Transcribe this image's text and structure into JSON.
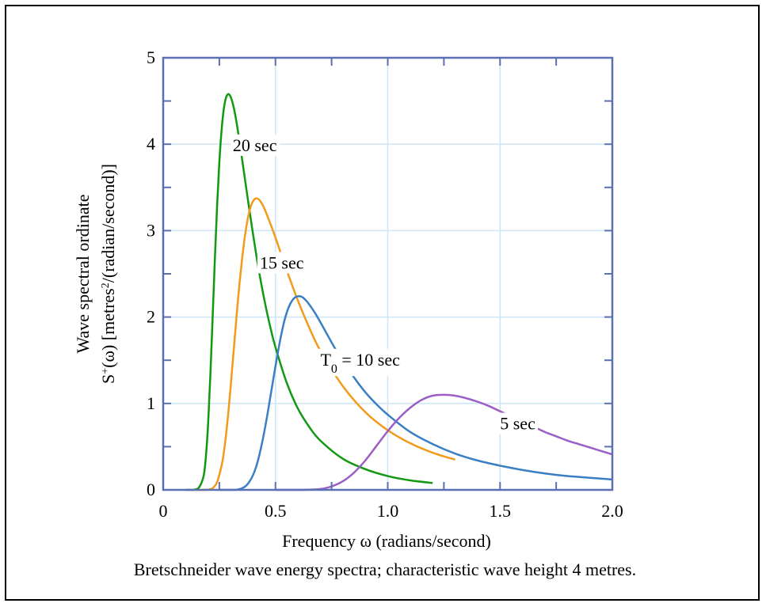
{
  "chart_data": {
    "type": "line",
    "title": "",
    "xlabel": "Frequency ω (radians/second)",
    "ylabel_line1": "Wave spectral ordinate",
    "ylabel_line2_prefix": "S",
    "ylabel_line2_sup": "+",
    "ylabel_line2_mid": "(ω) [metres",
    "ylabel_line2_sup2": "2",
    "ylabel_line2_suffix": "/(radian/second)]",
    "caption": "Bretschneider wave energy spectra; characteristic wave height 4 metres.",
    "xlim": [
      0,
      2.0
    ],
    "ylim": [
      0,
      5
    ],
    "x_ticks": [
      "0",
      "0.5",
      "1.0",
      "1.5",
      "2.0"
    ],
    "x_tick_values": [
      0,
      0.5,
      1.0,
      1.5,
      2.0
    ],
    "y_ticks": [
      "0",
      "1",
      "2",
      "3",
      "4",
      "5"
    ],
    "y_tick_values": [
      0,
      1,
      2,
      3,
      4,
      5
    ],
    "grid": true,
    "significant_wave_height": 4,
    "series": [
      {
        "label": "20 sec",
        "period": 20,
        "color": "#119911",
        "x": [
          0.1,
          0.12,
          0.14,
          0.16,
          0.18,
          0.19,
          0.2,
          0.21,
          0.22,
          0.23,
          0.24,
          0.25,
          0.26,
          0.27,
          0.28,
          0.29,
          0.3,
          0.31,
          0.32,
          0.33,
          0.34,
          0.35,
          0.36,
          0.37,
          0.38,
          0.4,
          0.42,
          0.44,
          0.46,
          0.48,
          0.5,
          0.55,
          0.6,
          0.65,
          0.7,
          0.8,
          0.9,
          1.0,
          1.1,
          1.2
        ],
        "values": [
          0.0,
          0.0,
          0.003,
          0.03,
          0.16,
          0.38,
          0.76,
          1.32,
          1.98,
          2.66,
          3.28,
          3.79,
          4.16,
          4.41,
          4.54,
          4.58,
          4.55,
          4.47,
          4.35,
          4.2,
          4.03,
          3.85,
          3.67,
          3.49,
          3.31,
          2.96,
          2.63,
          2.34,
          2.08,
          1.85,
          1.65,
          1.24,
          0.94,
          0.73,
          0.57,
          0.36,
          0.24,
          0.16,
          0.11,
          0.08
        ]
      },
      {
        "label": "15 sec",
        "period": 15,
        "color": "#f29a1a",
        "x": [
          0.15,
          0.18,
          0.2,
          0.22,
          0.24,
          0.26,
          0.27,
          0.28,
          0.29,
          0.3,
          0.31,
          0.32,
          0.33,
          0.34,
          0.35,
          0.36,
          0.37,
          0.38,
          0.39,
          0.4,
          0.41,
          0.42,
          0.43,
          0.44,
          0.45,
          0.47,
          0.5,
          0.53,
          0.56,
          0.6,
          0.65,
          0.7,
          0.8,
          0.9,
          1.0,
          1.1,
          1.2,
          1.3
        ],
        "values": [
          0.0,
          0.0,
          0.002,
          0.02,
          0.09,
          0.28,
          0.43,
          0.64,
          0.89,
          1.18,
          1.49,
          1.8,
          2.11,
          2.39,
          2.64,
          2.86,
          3.04,
          3.18,
          3.28,
          3.34,
          3.37,
          3.37,
          3.35,
          3.31,
          3.26,
          3.13,
          2.92,
          2.69,
          2.47,
          2.19,
          1.88,
          1.61,
          1.2,
          0.9,
          0.69,
          0.54,
          0.43,
          0.35
        ]
      },
      {
        "label": "T",
        "label_sub": "0",
        "label_suffix": " = 10 sec",
        "period": 10,
        "color": "#3a7fc4",
        "x": [
          0.25,
          0.3,
          0.33,
          0.36,
          0.38,
          0.4,
          0.42,
          0.44,
          0.46,
          0.48,
          0.5,
          0.52,
          0.54,
          0.56,
          0.58,
          0.6,
          0.62,
          0.64,
          0.66,
          0.68,
          0.7,
          0.73,
          0.76,
          0.8,
          0.85,
          0.9,
          0.95,
          1.0,
          1.1,
          1.2,
          1.3,
          1.4,
          1.5,
          1.6,
          1.7,
          1.8,
          1.9,
          2.0
        ],
        "values": [
          0.0,
          0.0,
          0.003,
          0.03,
          0.08,
          0.17,
          0.32,
          0.54,
          0.81,
          1.12,
          1.43,
          1.72,
          1.96,
          2.12,
          2.21,
          2.24,
          2.23,
          2.18,
          2.11,
          2.03,
          1.94,
          1.8,
          1.66,
          1.49,
          1.3,
          1.13,
          0.99,
          0.87,
          0.67,
          0.53,
          0.42,
          0.34,
          0.28,
          0.23,
          0.19,
          0.16,
          0.14,
          0.12
        ]
      },
      {
        "label": "5 sec",
        "period": 5,
        "color": "#9b5ec7",
        "x": [
          0.5,
          0.6,
          0.65,
          0.7,
          0.75,
          0.8,
          0.85,
          0.9,
          0.95,
          1.0,
          1.05,
          1.1,
          1.15,
          1.2,
          1.25,
          1.3,
          1.35,
          1.4,
          1.45,
          1.5,
          1.55,
          1.6,
          1.65,
          1.7,
          1.75,
          1.8,
          1.85,
          1.9,
          1.95,
          2.0
        ],
        "values": [
          0.0,
          0.0,
          0.002,
          0.01,
          0.04,
          0.1,
          0.2,
          0.34,
          0.51,
          0.68,
          0.83,
          0.95,
          1.04,
          1.09,
          1.1,
          1.09,
          1.06,
          1.02,
          0.97,
          0.91,
          0.85,
          0.79,
          0.73,
          0.67,
          0.62,
          0.57,
          0.53,
          0.49,
          0.45,
          0.41
        ]
      }
    ]
  }
}
